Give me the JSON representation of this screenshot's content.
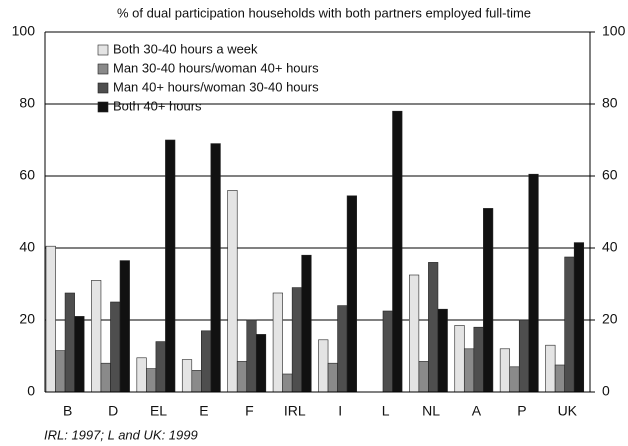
{
  "chart_data": {
    "type": "bar",
    "title": "% of dual participation households with both partners employed full-time",
    "footnote": "IRL: 1997; L and UK: 1999",
    "categories": [
      "B",
      "D",
      "EL",
      "E",
      "F",
      "IRL",
      "I",
      "L",
      "NL",
      "A",
      "P",
      "UK"
    ],
    "series": [
      {
        "name": "Both 30-40 hours a week",
        "color": "#e4e4e4",
        "values": [
          40.5,
          31,
          9.5,
          9,
          56,
          27.5,
          14.5,
          null,
          32.5,
          18.5,
          12,
          13
        ]
      },
      {
        "name": "Man 30-40 hours/woman 40+ hours",
        "color": "#8a8a8a",
        "values": [
          11.5,
          8,
          6.5,
          6,
          8.5,
          5,
          8,
          null,
          8.5,
          12,
          7,
          7.5
        ]
      },
      {
        "name": "Man 40+ hours/woman 30-40 hours",
        "color": "#4e4e4e",
        "values": [
          27.5,
          25,
          14,
          17,
          20,
          29,
          24,
          22.5,
          36,
          18,
          20,
          37.5
        ]
      },
      {
        "name": "Both 40+ hours",
        "color": "#111111",
        "values": [
          21,
          36.5,
          70,
          69,
          16,
          38,
          54.5,
          78,
          23,
          51,
          60.5,
          41.5
        ]
      }
    ],
    "ylim": [
      0,
      100
    ],
    "yticks": [
      0,
      20,
      40,
      60,
      80,
      100
    ],
    "y2lim": [
      0,
      100
    ],
    "y2ticks": [
      0,
      20,
      40,
      60,
      80,
      100
    ],
    "grid": true
  }
}
